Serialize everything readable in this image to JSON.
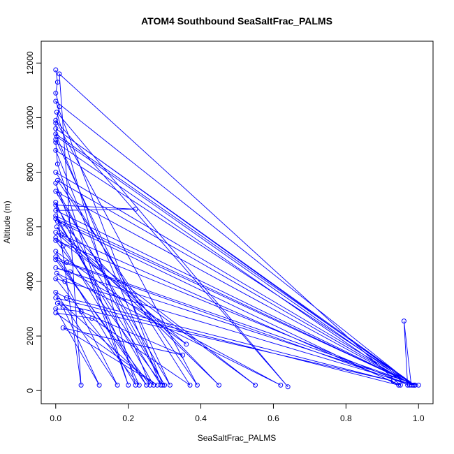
{
  "chart_data": {
    "type": "line",
    "title": "ATOM4 Southbound SeaSaltFrac_PALMS",
    "xlabel": "SeaSaltFrac_PALMS",
    "ylabel": "Altitude (m)",
    "xlim": [
      -0.04,
      1.04
    ],
    "ylim": [
      -480,
      12800
    ],
    "x_ticks": [
      0.0,
      0.2,
      0.4,
      0.6,
      0.8,
      1.0
    ],
    "x_tick_labels": [
      "0.0",
      "0.2",
      "0.4",
      "0.6",
      "0.8",
      "1.0"
    ],
    "y_ticks": [
      0,
      2000,
      4000,
      6000,
      8000,
      10000,
      12000
    ],
    "y_tick_labels": [
      "0",
      "2000",
      "4000",
      "6000",
      "8000",
      "10000",
      "12000"
    ],
    "grid": false,
    "color": "#0000ff",
    "marker": "open-circle",
    "series": [
      {
        "values": [
          [
            0.0,
            11750
          ],
          [
            0.005,
            11300
          ],
          [
            0.0,
            10900
          ],
          [
            0.01,
            10400
          ],
          [
            0.0,
            9800
          ],
          [
            0.003,
            9300
          ],
          [
            0.98,
            200
          ],
          [
            0.96,
            2550
          ],
          [
            0.97,
            200
          ],
          [
            0.0,
            9100
          ],
          [
            0.005,
            8300
          ],
          [
            0.2,
            200
          ],
          [
            0.0,
            7600
          ],
          [
            0.01,
            7200
          ],
          [
            0.3,
            200
          ],
          [
            0.0,
            6800
          ],
          [
            0.22,
            6650
          ],
          [
            0.0,
            6600
          ],
          [
            0.99,
            200
          ],
          [
            0.0,
            6300
          ],
          [
            0.02,
            6100
          ],
          [
            0.45,
            200
          ],
          [
            0.003,
            6000
          ],
          [
            0.015,
            5700
          ],
          [
            0.55,
            200
          ],
          [
            0.0,
            5600
          ],
          [
            0.02,
            5300
          ],
          [
            0.25,
            200
          ],
          [
            0.0,
            4900
          ],
          [
            0.03,
            4700
          ],
          [
            1.0,
            200
          ],
          [
            0.0,
            4500
          ],
          [
            0.04,
            4350
          ],
          [
            0.62,
            200
          ],
          [
            0.003,
            4300
          ],
          [
            0.025,
            4000
          ],
          [
            0.17,
            200
          ],
          [
            0.0,
            3600
          ],
          [
            0.03,
            3400
          ],
          [
            0.93,
            350
          ],
          [
            0.005,
            3200
          ],
          [
            0.02,
            3050
          ],
          [
            0.12,
            200
          ],
          [
            0.0,
            3000
          ],
          [
            0.07,
            2900
          ],
          [
            0.35,
            1300
          ],
          [
            0.02,
            2300
          ],
          [
            0.28,
            200
          ],
          [
            0.0,
            2850
          ],
          [
            0.1,
            2650
          ],
          [
            0.37,
            200
          ],
          [
            0.0,
            8000
          ],
          [
            0.99,
            200
          ],
          [
            0.0,
            9600
          ],
          [
            0.985,
            200
          ],
          [
            0.005,
            7700
          ],
          [
            0.39,
            200
          ],
          [
            0.0,
            9900
          ],
          [
            0.64,
            140
          ],
          [
            0.003,
            10200
          ],
          [
            0.22,
            200
          ],
          [
            0.0,
            5100
          ],
          [
            0.36,
            1700
          ],
          [
            0.0,
            5800
          ],
          [
            0.95,
            200
          ],
          [
            0.01,
            11600
          ],
          [
            0.07,
            200
          ],
          [
            0.0,
            6900
          ],
          [
            0.23,
            200
          ],
          [
            0.0,
            4100
          ],
          [
            0.99,
            200
          ],
          [
            0.0,
            6400
          ],
          [
            0.27,
            200
          ],
          [
            0.0,
            3400
          ],
          [
            0.945,
            200
          ],
          [
            0.005,
            6200
          ],
          [
            0.29,
            200
          ],
          [
            0.0,
            9400
          ],
          [
            0.99,
            200
          ],
          [
            0.0,
            8800
          ],
          [
            0.26,
            200
          ],
          [
            0.0,
            4800
          ],
          [
            0.975,
            200
          ],
          [
            0.0,
            5500
          ],
          [
            0.295,
            200
          ],
          [
            0.0,
            10600
          ],
          [
            0.985,
            200
          ],
          [
            0.0,
            7300
          ],
          [
            0.315,
            200
          ],
          [
            0.0,
            9200
          ]
        ]
      }
    ]
  }
}
